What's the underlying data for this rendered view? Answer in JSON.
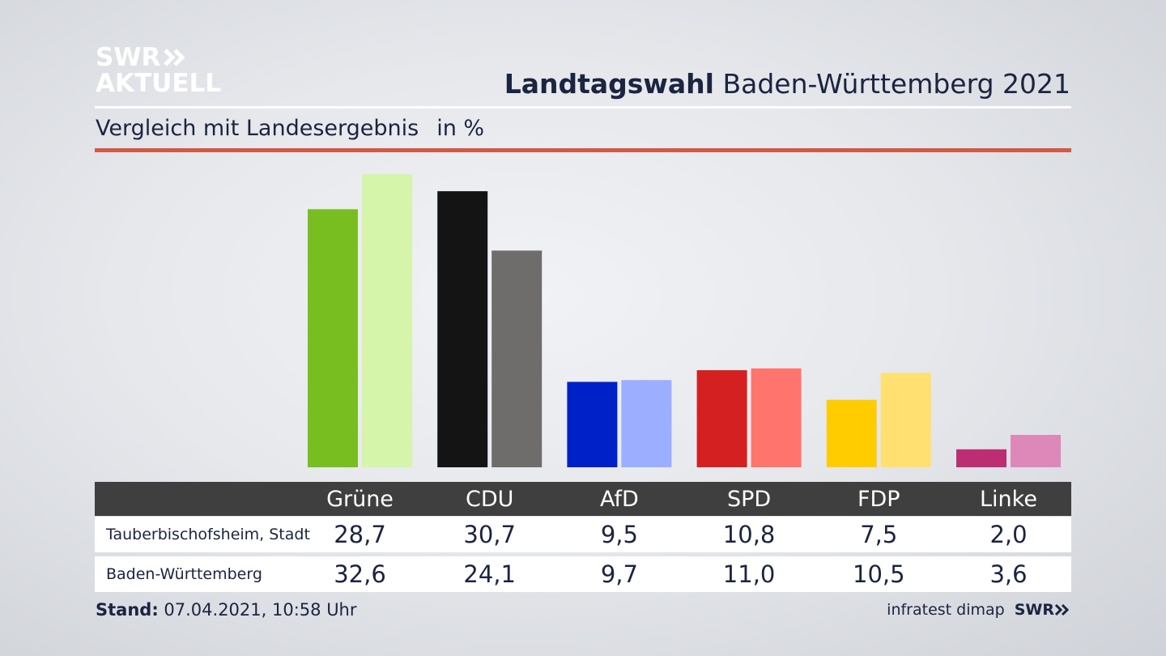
{
  "brand": {
    "line1": "SWR",
    "line2": "AKTUELL"
  },
  "header": {
    "title_bold": "Landtagswahl",
    "title_rest": "Baden-Württemberg 2021"
  },
  "subtitle": {
    "text": "Vergleich mit Landesergebnis",
    "unit": "in %"
  },
  "footer": {
    "stand_label": "Stand:",
    "stand_value": "07.04.2021, 10:58 Uhr",
    "source": "infratest dimap",
    "source_brand": "SWR"
  },
  "chart_data": {
    "type": "bar",
    "categories": [
      "Grüne",
      "CDU",
      "AfD",
      "SPD",
      "FDP",
      "Linke"
    ],
    "series": [
      {
        "name": "Tauberbischofsheim, Stadt",
        "values": [
          28.7,
          30.7,
          9.5,
          10.8,
          7.5,
          2.0
        ],
        "display": [
          "28,7",
          "30,7",
          "9,5",
          "10,8",
          "7,5",
          "2,0"
        ]
      },
      {
        "name": "Baden-Württemberg",
        "values": [
          32.6,
          24.1,
          9.7,
          11.0,
          10.5,
          3.6
        ],
        "display": [
          "32,6",
          "24,1",
          "9,7",
          "11,0",
          "10,5",
          "3,6"
        ]
      }
    ],
    "colors": {
      "series1": [
        "#78be20",
        "#141414",
        "#0020c8",
        "#d42020",
        "#ffcc00",
        "#bb2f72"
      ],
      "series2": [
        "#d5f5aa",
        "#6e6d6b",
        "#9caeff",
        "#ff756d",
        "#ffe070",
        "#dd88b8"
      ]
    },
    "ylim": [
      0,
      32.6
    ],
    "grid": false,
    "legend": "table-below"
  }
}
